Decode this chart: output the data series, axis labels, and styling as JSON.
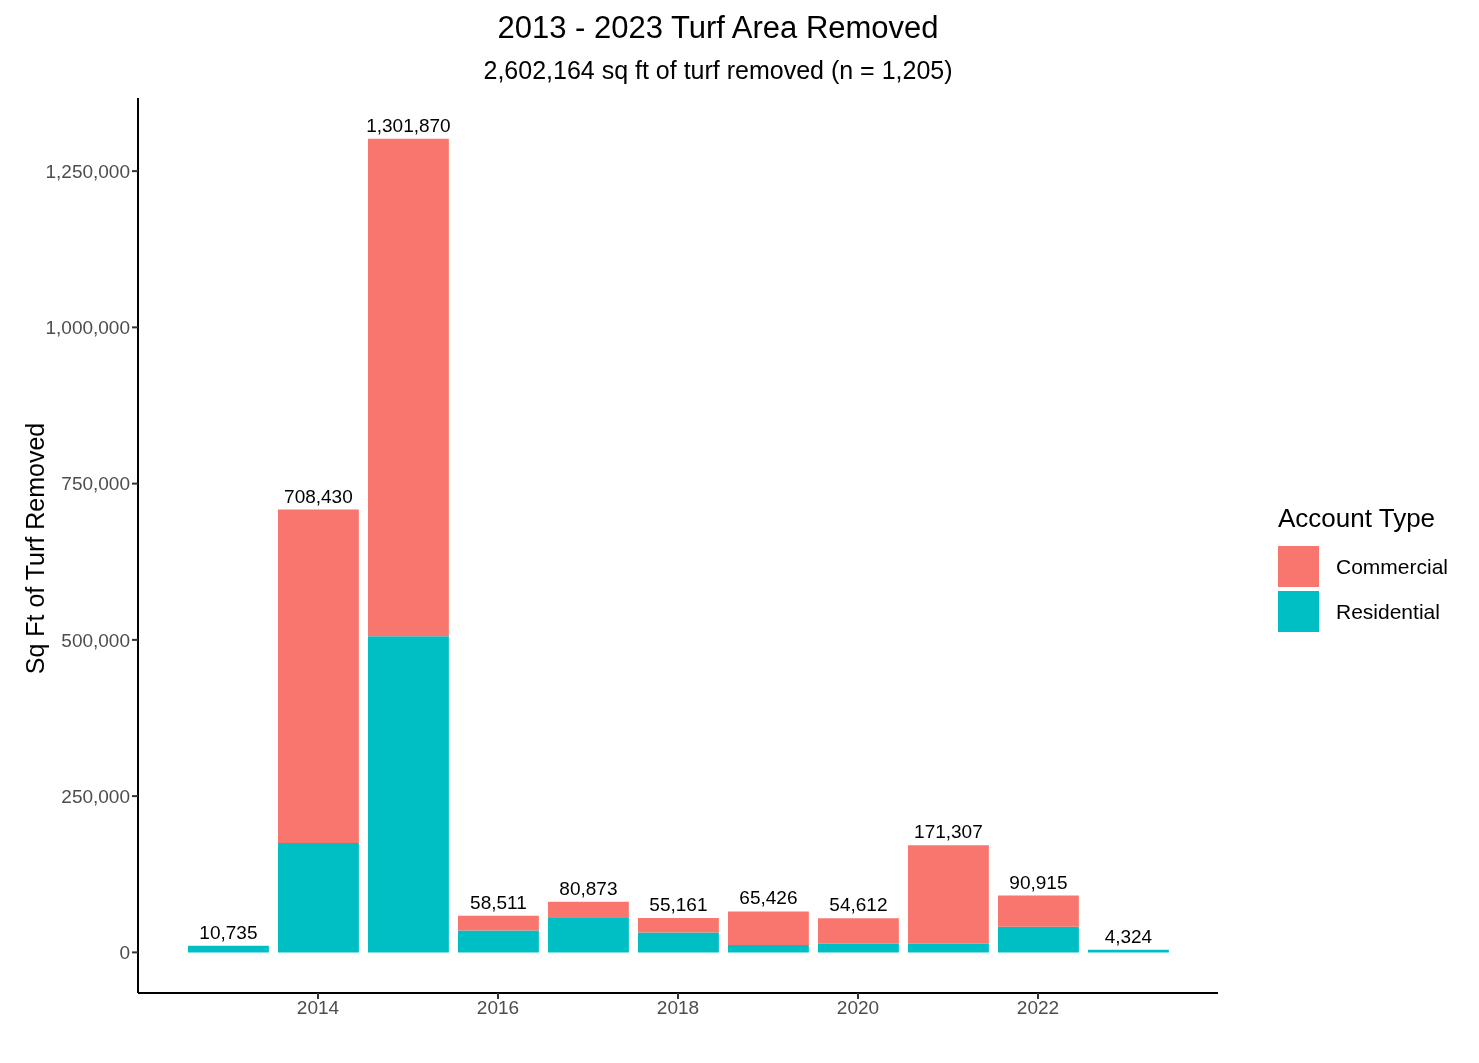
{
  "chart_data": {
    "type": "bar",
    "title": "2013 - 2023 Turf Area Removed",
    "subtitle": "2,602,164 sq ft of turf removed (n = 1,205)",
    "ylabel": "Sq Ft of Turf Removed",
    "legend_title": "Account Type",
    "x": [
      2013,
      2014,
      2015,
      2016,
      2017,
      2018,
      2019,
      2020,
      2021,
      2022,
      2023
    ],
    "series": [
      {
        "name": "Residential",
        "color": "#00bfc4",
        "values": [
          10735,
          175000,
          506000,
          35000,
          55000,
          32000,
          12000,
          14000,
          14000,
          41000,
          4324
        ]
      },
      {
        "name": "Commercial",
        "color": "#f8766d",
        "values": [
          0,
          533430,
          795870,
          23511,
          25873,
          23161,
          53426,
          40612,
          157307,
          49915,
          0
        ]
      }
    ],
    "stacked": true,
    "totals": [
      "10,735",
      "708,430",
      "1,301,870",
      "58,511",
      "80,873",
      "55,161",
      "65,426",
      "54,612",
      "171,307",
      "90,915",
      "4,324"
    ],
    "xlim": [
      2012,
      2024
    ],
    "xticks": [
      2014,
      2016,
      2018,
      2020,
      2022
    ],
    "ylim": [
      -65000,
      1367000
    ],
    "yticks": [
      0,
      {
        "value": 250000,
        "label": "250,000"
      },
      {
        "value": 500000,
        "label": "500,000"
      },
      {
        "value": 750000,
        "label": "750,000"
      },
      {
        "value": 1000000,
        "label": "1,000,000"
      },
      {
        "value": 1250000,
        "label": "1,250,000"
      }
    ],
    "grid": false,
    "legend": "right"
  }
}
